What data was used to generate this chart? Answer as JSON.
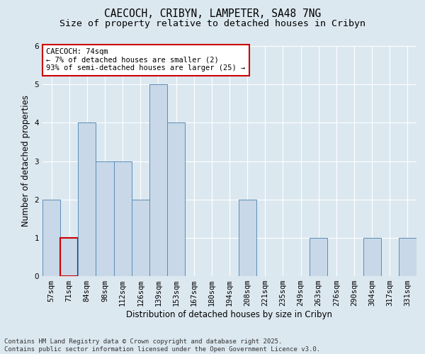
{
  "title_line1": "CAECOCH, CRIBYN, LAMPETER, SA48 7NG",
  "title_line2": "Size of property relative to detached houses in Cribyn",
  "xlabel": "Distribution of detached houses by size in Cribyn",
  "ylabel": "Number of detached properties",
  "categories": [
    "57sqm",
    "71sqm",
    "84sqm",
    "98sqm",
    "112sqm",
    "126sqm",
    "139sqm",
    "153sqm",
    "167sqm",
    "180sqm",
    "194sqm",
    "208sqm",
    "221sqm",
    "235sqm",
    "249sqm",
    "263sqm",
    "276sqm",
    "290sqm",
    "304sqm",
    "317sqm",
    "331sqm"
  ],
  "values": [
    2,
    1,
    4,
    3,
    3,
    2,
    5,
    4,
    0,
    0,
    0,
    2,
    0,
    0,
    0,
    1,
    0,
    0,
    1,
    0,
    1
  ],
  "bar_color": "#c8d8e8",
  "bar_edge_color": "#5b8db8",
  "highlight_bar_index": 1,
  "highlight_edge_color": "#cc0000",
  "annotation_text": "CAECOCH: 74sqm\n← 7% of detached houses are smaller (2)\n93% of semi-detached houses are larger (25) →",
  "annotation_box_color": "#ffffff",
  "annotation_box_edge_color": "#cc0000",
  "ylim": [
    0,
    6
  ],
  "yticks": [
    0,
    1,
    2,
    3,
    4,
    5,
    6
  ],
  "background_color": "#dce8f0",
  "footer_text": "Contains HM Land Registry data © Crown copyright and database right 2025.\nContains public sector information licensed under the Open Government Licence v3.0.",
  "title_fontsize": 10.5,
  "subtitle_fontsize": 9.5,
  "axis_label_fontsize": 8.5,
  "tick_fontsize": 7.5,
  "annotation_fontsize": 7.5,
  "footer_fontsize": 6.5
}
